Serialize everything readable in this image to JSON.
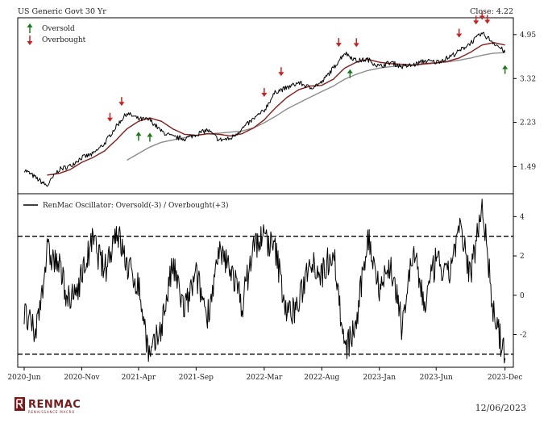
{
  "header": {
    "title": "US Generic Govt 30 Yr",
    "close_label": "Close: 4.22"
  },
  "footer": {
    "date": "12/06/2023",
    "logo_text": "RENMAC",
    "logo_sub": "RENAISSANCE MACRO"
  },
  "colors": {
    "price": "#000000",
    "ma_short": "#8b1a1a",
    "ma_long": "#8c8c8c",
    "oversold_arrow": "#1a7a1a",
    "overbought_arrow": "#cc2020",
    "frame": "#000000"
  },
  "chart_data": [
    {
      "type": "line",
      "panel": "price",
      "title": "US Generic Govt 30 Yr",
      "scale": "log",
      "ylim": [
        1.2,
        5.6
      ],
      "y_ticks": [
        1.49,
        2.23,
        3.32,
        4.95
      ],
      "x": [
        "2020-06-01",
        "2020-07-01",
        "2020-08-01",
        "2020-09-01",
        "2020-10-01",
        "2020-11-01",
        "2020-12-01",
        "2021-01-01",
        "2021-02-01",
        "2021-03-01",
        "2021-04-01",
        "2021-05-01",
        "2021-06-01",
        "2021-07-01",
        "2021-08-01",
        "2021-09-01",
        "2021-10-01",
        "2021-11-01",
        "2021-12-01",
        "2022-01-01",
        "2022-02-01",
        "2022-03-01",
        "2022-04-01",
        "2022-05-01",
        "2022-06-01",
        "2022-07-01",
        "2022-08-01",
        "2022-09-01",
        "2022-10-01",
        "2022-11-01",
        "2022-12-01",
        "2023-01-01",
        "2023-02-01",
        "2023-03-01",
        "2023-04-01",
        "2023-05-01",
        "2023-06-01",
        "2023-07-01",
        "2023-08-01",
        "2023-09-01",
        "2023-10-01",
        "2023-11-01",
        "2023-12-01"
      ],
      "series": [
        {
          "name": "Price",
          "values": [
            1.45,
            1.35,
            1.25,
            1.45,
            1.5,
            1.62,
            1.67,
            1.84,
            2.15,
            2.42,
            2.3,
            2.28,
            2.05,
            1.95,
            1.92,
            2.0,
            2.08,
            1.9,
            1.92,
            2.1,
            2.3,
            2.48,
            2.95,
            3.05,
            3.2,
            3.05,
            3.2,
            3.65,
            4.2,
            3.9,
            3.95,
            3.7,
            3.85,
            3.7,
            3.75,
            3.9,
            3.85,
            4.0,
            4.25,
            4.6,
            5.0,
            4.6,
            4.22
          ]
        },
        {
          "name": "Short MA",
          "values": [
            null,
            null,
            1.38,
            1.4,
            1.45,
            1.55,
            1.62,
            1.72,
            1.9,
            2.1,
            2.25,
            2.32,
            2.25,
            2.1,
            2.0,
            1.98,
            2.01,
            2.0,
            1.97,
            2.01,
            2.12,
            2.28,
            2.55,
            2.8,
            3.0,
            3.1,
            3.12,
            3.3,
            3.65,
            3.85,
            3.95,
            3.85,
            3.8,
            3.78,
            3.75,
            3.8,
            3.83,
            3.88,
            4.0,
            4.22,
            4.5,
            4.6,
            4.5
          ]
        },
        {
          "name": "Long MA",
          "values": [
            null,
            null,
            null,
            null,
            null,
            null,
            null,
            null,
            null,
            1.58,
            1.68,
            1.78,
            1.86,
            1.9,
            1.94,
            1.98,
            2.01,
            2.02,
            2.04,
            2.06,
            2.12,
            2.22,
            2.36,
            2.52,
            2.66,
            2.8,
            2.95,
            3.1,
            3.3,
            3.45,
            3.57,
            3.65,
            3.7,
            3.72,
            3.75,
            3.78,
            3.82,
            3.86,
            3.92,
            4.0,
            4.1,
            4.18,
            4.2
          ]
        }
      ],
      "annotations": {
        "legend": [
          "Oversold",
          "Overbought"
        ],
        "oversold_dates": [
          "2021-04-01",
          "2021-05-01",
          "2022-10-15",
          "2023-12-01"
        ],
        "overbought_dates": [
          "2021-01-15",
          "2021-02-15",
          "2022-03-01",
          "2022-04-15",
          "2022-09-15",
          "2022-11-01",
          "2023-08-01",
          "2023-09-15",
          "2023-10-01",
          "2023-10-15"
        ]
      }
    },
    {
      "type": "line",
      "panel": "oscillator",
      "legend": "RenMac Oscillator: Oversold(-3) / Overbought(+3)",
      "ylim": [
        -3.5,
        5
      ],
      "y_ticks": [
        -2,
        0,
        2,
        4
      ],
      "reference_lines": [
        3,
        -3
      ],
      "x_ticks": [
        "2020-Jun",
        "2020-Nov",
        "2021-Apr",
        "2021-Sep",
        "2022-Mar",
        "2022-Aug",
        "2023-Jan",
        "2023-Jun",
        "2023-Dec"
      ],
      "x": [
        "2020-06-01",
        "2020-07-01",
        "2020-08-01",
        "2020-09-01",
        "2020-10-01",
        "2020-11-01",
        "2020-12-01",
        "2021-01-01",
        "2021-02-01",
        "2021-03-01",
        "2021-04-01",
        "2021-05-01",
        "2021-06-01",
        "2021-07-01",
        "2021-08-01",
        "2021-09-01",
        "2021-10-01",
        "2021-11-01",
        "2021-12-01",
        "2022-01-01",
        "2022-02-01",
        "2022-03-01",
        "2022-04-01",
        "2022-05-01",
        "2022-06-01",
        "2022-07-01",
        "2022-08-01",
        "2022-09-01",
        "2022-10-01",
        "2022-11-01",
        "2022-12-01",
        "2023-01-01",
        "2023-02-01",
        "2023-03-01",
        "2023-04-01",
        "2023-05-01",
        "2023-06-01",
        "2023-07-01",
        "2023-08-01",
        "2023-09-01",
        "2023-10-01",
        "2023-11-01",
        "2023-12-01"
      ],
      "series": [
        {
          "name": "RenMac Oscillator",
          "values": [
            -1.0,
            -2.0,
            2.2,
            1.5,
            -0.5,
            1.0,
            2.8,
            1.2,
            3.4,
            1.5,
            0.5,
            -3.3,
            -1.5,
            1.5,
            -0.8,
            1.0,
            -1.0,
            2.0,
            1.5,
            -0.5,
            2.5,
            3.0,
            2.2,
            -1.0,
            -0.5,
            2.0,
            1.0,
            2.4,
            -2.9,
            -1.5,
            3.0,
            0.5,
            1.5,
            -1.5,
            2.2,
            -0.5,
            1.8,
            0.8,
            3.4,
            1.0,
            4.8,
            -1.0,
            -3.2
          ]
        }
      ]
    }
  ]
}
